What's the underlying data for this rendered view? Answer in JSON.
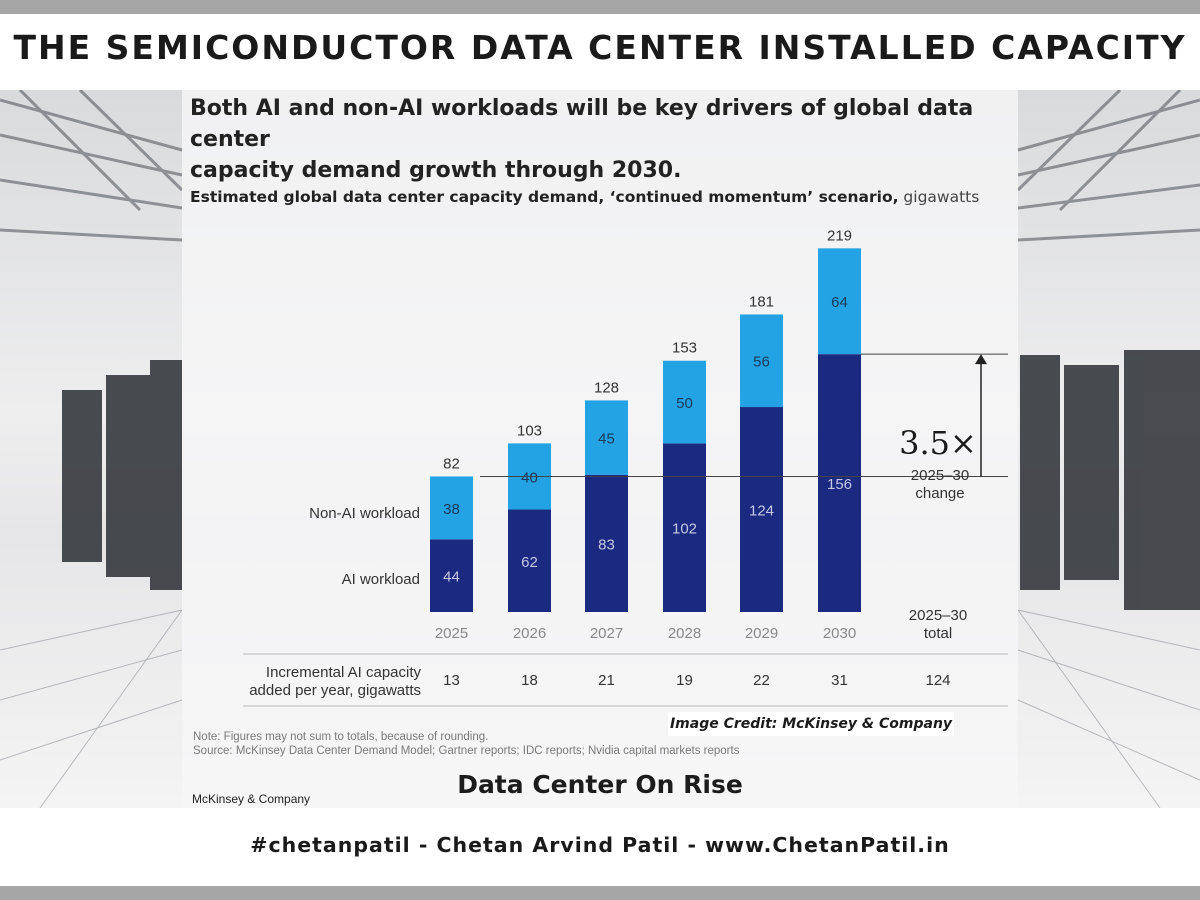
{
  "page": {
    "title": "THE SEMICONDUCTOR DATA CENTER INSTALLED CAPACITY",
    "headline_line1": "Both AI and non-AI workloads will be key drivers of global data center",
    "headline_line2": "capacity demand growth through 2030.",
    "subtitle_bold": "Estimated global data center capacity demand, ‘continued momentum’ scenario,",
    "subtitle_unit": " gigawatts",
    "note": "Note: Figures may not sum to totals, because of rounding.",
    "source": "Source: McKinsey Data Center Demand Model; Gartner reports; IDC reports; Nvidia capital markets reports",
    "credit": "Image Credit: McKinsey & Company",
    "tagline": "Data Center On Rise",
    "brand": "McKinsey & Company",
    "footer": "#chetanpatil - Chetan Arvind Patil - www.ChetanPatil.in"
  },
  "colors": {
    "ai": "#1c2981",
    "non_ai": "#23a3e3",
    "ai_label": "#c4c9e6",
    "non_ai_label": "#1c3a5a",
    "text": "#333333",
    "muted": "#888888"
  },
  "chart_data": {
    "type": "bar",
    "stacked": true,
    "categories": [
      "2025",
      "2026",
      "2027",
      "2028",
      "2029",
      "2030"
    ],
    "series": [
      {
        "name": "AI workload",
        "values": [
          44,
          62,
          83,
          102,
          124,
          156
        ]
      },
      {
        "name": "Non-AI workload",
        "values": [
          38,
          40,
          45,
          50,
          56,
          64
        ]
      }
    ],
    "totals": [
      82,
      103,
      128,
      153,
      181,
      219
    ],
    "ylim": [
      0,
      219
    ],
    "grid": false,
    "legend": "left",
    "change": {
      "value": "3.5×",
      "label_line1": "2025–30",
      "label_line2": "change"
    },
    "total_column": {
      "header_line1": "2025–30",
      "header_line2": "total",
      "value": "124"
    },
    "incremental": {
      "label_line1": "Incremental AI capacity",
      "label_line2": "added per year, gigawatts",
      "values": [
        "13",
        "18",
        "21",
        "19",
        "22",
        "31"
      ]
    }
  }
}
